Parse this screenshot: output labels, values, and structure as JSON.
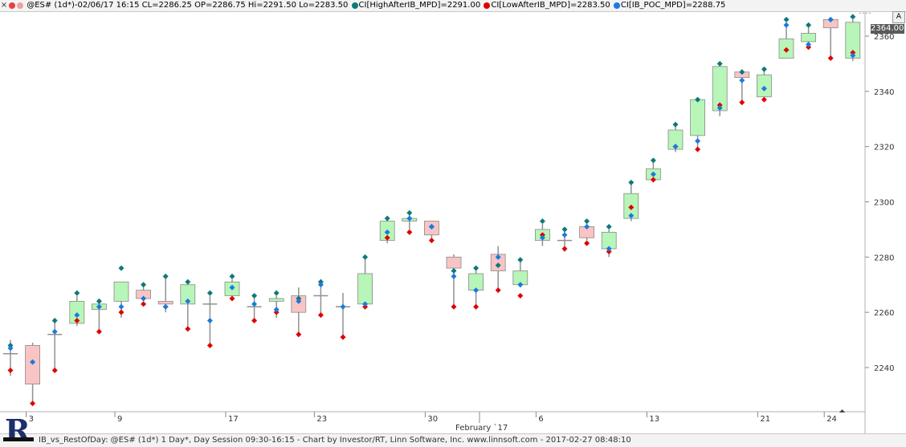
{
  "header": {
    "window_dots": [
      "#e84040",
      "#f0a0a0"
    ],
    "title": "@ES# (1d*)-02/06/17 16:15 CL=2286.25 OP=2286.75 Hi=2291.50 Lo=2283.50",
    "indicators": [
      {
        "icon": "teal-dot-icon",
        "color": "#0b7a7a",
        "text": "CI[HighAfterIB_MPD]=2291.00"
      },
      {
        "icon": "red-dot-icon",
        "color": "#e00000",
        "text": "CI[LowAfterIB_MPD]=2283.50"
      },
      {
        "icon": "blue-dot-icon",
        "color": "#1a7ae0",
        "text": "CI[IB_POC_MPD]=2288.75"
      }
    ],
    "close_icon": "×"
  },
  "scale_button": "A",
  "last_price_label": "2364.00",
  "footer": {
    "text": "IB_vs_RestOfDay: @ES# (1d*) 1 Day*, Day Session 09:30-16:15 - Chart by Investor/RT, Linn Software, Inc. www.linnsoft.com - 2017-02-27 08:48:10",
    "logo_letter": "R"
  },
  "chart_data": {
    "type": "candlestick",
    "ylim": [
      2225,
      2370
    ],
    "y_ticks": [
      2240,
      2260,
      2280,
      2300,
      2320,
      2340,
      2360
    ],
    "x_tick_labels": [
      {
        "label": "3",
        "index": 1
      },
      {
        "label": "9",
        "index": 5
      },
      {
        "label": "17",
        "index": 10
      },
      {
        "label": "23",
        "index": 14
      },
      {
        "label": "30",
        "index": 19
      },
      {
        "label": "6",
        "index": 24
      },
      {
        "label": "13",
        "index": 29
      },
      {
        "label": "21",
        "index": 34
      },
      {
        "label": "24",
        "index": 37
      }
    ],
    "month_label": "February `17",
    "colors": {
      "up": "#b8f5b8",
      "down": "#f8c4c4",
      "wick": "#909090",
      "high_after_ib": "#0b7a7a",
      "low_after_ib": "#e00000",
      "ib_poc": "#1a7ae0"
    },
    "candles": [
      {
        "o": 2245,
        "h": 2250,
        "l": 2237,
        "c": 2245,
        "hi": 2248,
        "lo": 2239,
        "poc": 2247
      },
      {
        "o": 2248,
        "h": 2249,
        "l": 2227,
        "c": 2234,
        "hi": null,
        "lo": 2227,
        "poc": 2242
      },
      {
        "o": 2252,
        "h": 2257,
        "l": 2239,
        "c": 2252,
        "hi": 2257,
        "lo": 2239,
        "poc": 2253
      },
      {
        "o": 2256,
        "h": 2266,
        "l": 2255,
        "c": 2264,
        "hi": 2267,
        "lo": 2257,
        "poc": 2259
      },
      {
        "o": 2261,
        "h": 2265,
        "l": 2253,
        "c": 2263,
        "hi": 2264,
        "lo": 2253,
        "poc": 2262
      },
      {
        "o": 2264,
        "h": 2271,
        "l": 2258,
        "c": 2271,
        "hi": 2276,
        "lo": 2260,
        "poc": 2262
      },
      {
        "o": 2268,
        "h": 2270,
        "l": 2264,
        "c": 2265,
        "hi": 2270,
        "lo": 2263,
        "poc": 2265
      },
      {
        "o": 2264,
        "h": 2273,
        "l": 2260,
        "c": 2263,
        "hi": 2273,
        "lo": 2262,
        "poc": 2262
      },
      {
        "o": 2263,
        "h": 2270,
        "l": 2254,
        "c": 2270,
        "hi": 2271,
        "lo": 2254,
        "poc": 2264
      },
      {
        "o": 2263,
        "h": 2266,
        "l": 2248,
        "c": 2263,
        "hi": 2267,
        "lo": 2248,
        "poc": 2257
      },
      {
        "o": 2266,
        "h": 2272,
        "l": 2266,
        "c": 2271,
        "hi": 2273,
        "lo": 2265,
        "poc": 2269
      },
      {
        "o": 2262,
        "h": 2266,
        "l": 2257,
        "c": 2262,
        "hi": 2266,
        "lo": 2257,
        "poc": 2263
      },
      {
        "o": 2264,
        "h": 2266,
        "l": 2258,
        "c": 2265,
        "hi": 2267,
        "lo": 2260,
        "poc": 2261
      },
      {
        "o": 2266,
        "h": 2269,
        "l": 2252,
        "c": 2260,
        "hi": 2265,
        "lo": 2252,
        "poc": 2264
      },
      {
        "o": 2266,
        "h": 2272,
        "l": 2259,
        "c": 2266,
        "hi": 2271,
        "lo": 2259,
        "poc": 2270
      },
      {
        "o": 2262,
        "h": 2267,
        "l": 2251,
        "c": 2262,
        "hi": null,
        "lo": 2251,
        "poc": 2262
      },
      {
        "o": 2263,
        "h": 2280,
        "l": 2263,
        "c": 2274,
        "hi": 2280,
        "lo": 2262,
        "poc": 2263
      },
      {
        "o": 2286,
        "h": 2293,
        "l": 2285,
        "c": 2293,
        "hi": 2294,
        "lo": 2287,
        "poc": 2289
      },
      {
        "o": 2293,
        "h": 2296,
        "l": 2290,
        "c": 2294,
        "hi": 2296,
        "lo": 2289,
        "poc": 2294
      },
      {
        "o": 2293,
        "h": 2293,
        "l": 2286,
        "c": 2288,
        "hi": 2291,
        "lo": 2286,
        "poc": 2291
      },
      {
        "o": 2280,
        "h": 2281,
        "l": 2262,
        "c": 2276,
        "hi": 2275,
        "lo": 2262,
        "poc": 2273
      },
      {
        "o": 2268,
        "h": 2276,
        "l": 2261,
        "c": 2274,
        "hi": 2276,
        "lo": 2262,
        "poc": 2268
      },
      {
        "o": 2281,
        "h": 2284,
        "l": 2268,
        "c": 2275,
        "hi": 2277,
        "lo": 2268,
        "poc": 2280
      },
      {
        "o": 2270,
        "h": 2279,
        "l": 2269,
        "c": 2275,
        "hi": 2279,
        "lo": 2266,
        "poc": 2270
      },
      {
        "o": 2286,
        "h": 2292,
        "l": 2284,
        "c": 2290,
        "hi": 2293,
        "lo": 2288,
        "poc": 2287
      },
      {
        "o": 2286,
        "h": 2290,
        "l": 2282,
        "c": 2286,
        "hi": 2290,
        "lo": 2283,
        "poc": 2288
      },
      {
        "o": 2291,
        "h": 2293,
        "l": 2286,
        "c": 2287,
        "hi": 2293,
        "lo": 2285,
        "poc": 2291
      },
      {
        "o": 2283,
        "h": 2290,
        "l": 2280,
        "c": 2289,
        "hi": 2291,
        "lo": 2282,
        "poc": 2283
      },
      {
        "o": 2294,
        "h": 2307,
        "l": 2293,
        "c": 2303,
        "hi": 2307,
        "lo": 2298,
        "poc": 2295
      },
      {
        "o": 2308,
        "h": 2315,
        "l": 2308,
        "c": 2312,
        "hi": 2315,
        "lo": 2308,
        "poc": 2310
      },
      {
        "o": 2319,
        "h": 2328,
        "l": 2318,
        "c": 2326,
        "hi": 2328,
        "lo": 2320,
        "poc": 2320
      },
      {
        "o": 2324,
        "h": 2337,
        "l": 2319,
        "c": 2337,
        "hi": 2337,
        "lo": 2319,
        "poc": 2322
      },
      {
        "o": 2333,
        "h": 2350,
        "l": 2331,
        "c": 2349,
        "hi": 2350,
        "lo": 2335,
        "poc": 2334
      },
      {
        "o": 2347,
        "h": 2348,
        "l": 2336,
        "c": 2345,
        "hi": 2347,
        "lo": 2336,
        "poc": 2344
      },
      {
        "o": 2338,
        "h": 2348,
        "l": 2337,
        "c": 2346,
        "hi": 2348,
        "lo": 2337,
        "poc": 2341
      },
      {
        "o": 2352,
        "h": 2365,
        "l": 2352,
        "c": 2359,
        "hi": 2366,
        "lo": 2355,
        "poc": 2364
      },
      {
        "o": 2358,
        "h": 2364,
        "l": 2356,
        "c": 2361,
        "hi": 2364,
        "lo": 2356,
        "poc": 2357
      },
      {
        "o": 2366,
        "h": 2366,
        "l": 2352,
        "c": 2363,
        "hi": 2366,
        "lo": 2352,
        "poc": 2366
      },
      {
        "o": 2352,
        "h": 2366,
        "l": 2351,
        "c": 2365,
        "hi": 2367,
        "lo": 2354,
        "poc": 2353
      }
    ]
  }
}
